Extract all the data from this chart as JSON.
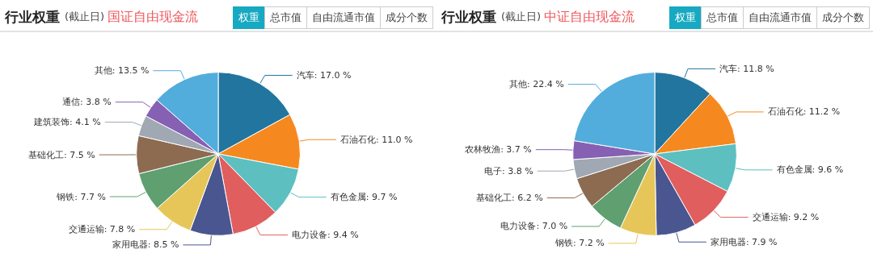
{
  "chart_data": [
    {
      "type": "pie",
      "title": "行业权重",
      "subtitle": "(截止日)",
      "annotations": [
        "国证自由现金流",
        "权重",
        "总市值",
        "自由流通市值",
        "成分个数"
      ],
      "categories": [
        "汽车",
        "石油石化",
        "有色金属",
        "电力设备",
        "家用电器",
        "交通运输",
        "钢铁",
        "基础化工",
        "建筑装饰",
        "通信",
        "其他"
      ],
      "values": [
        17.0,
        11.0,
        9.7,
        9.4,
        8.5,
        7.8,
        7.7,
        7.5,
        4.1,
        3.8,
        13.5
      ],
      "value_labels": [
        "17.0 %",
        "11.0 %",
        "9.7 %",
        "9.4 %",
        "8.5 %",
        "7.8 %",
        "7.7 %",
        "7.5 %",
        "4.1 %",
        "3.8 %",
        "13.5 %"
      ],
      "colors": [
        "#22759f",
        "#f5891f",
        "#5dbfbf",
        "#e05e5e",
        "#4a5690",
        "#e6c659",
        "#5f9f70",
        "#8d6b50",
        "#9fa8b3",
        "#8660b2",
        "#52addc"
      ],
      "legend": false
    },
    {
      "type": "pie",
      "title": "行业权重",
      "subtitle": "(截止日)",
      "annotations": [
        "中证自由现金流",
        "权重",
        "总市值",
        "自由流通市值",
        "成分个数"
      ],
      "categories": [
        "汽车",
        "石油石化",
        "有色金属",
        "交通运输",
        "家用电器",
        "钢铁",
        "电力设备",
        "基础化工",
        "电子",
        "农林牧渔",
        "其他"
      ],
      "values": [
        11.8,
        11.2,
        9.6,
        9.2,
        7.9,
        7.2,
        7.0,
        6.2,
        3.8,
        3.7,
        22.4
      ],
      "value_labels": [
        "11.8 %",
        "11.2 %",
        "9.6 %",
        "9.2 %",
        "7.9 %",
        "7.2 %",
        "7.0 %",
        "6.2 %",
        "3.8 %",
        "3.7 %",
        "22.4 %"
      ],
      "colors": [
        "#22759f",
        "#f5891f",
        "#5dbfbf",
        "#e05e5e",
        "#4a5690",
        "#e6c659",
        "#5f9f70",
        "#8d6b50",
        "#9fa8b3",
        "#8660b2",
        "#52addc"
      ],
      "legend": false
    }
  ]
}
